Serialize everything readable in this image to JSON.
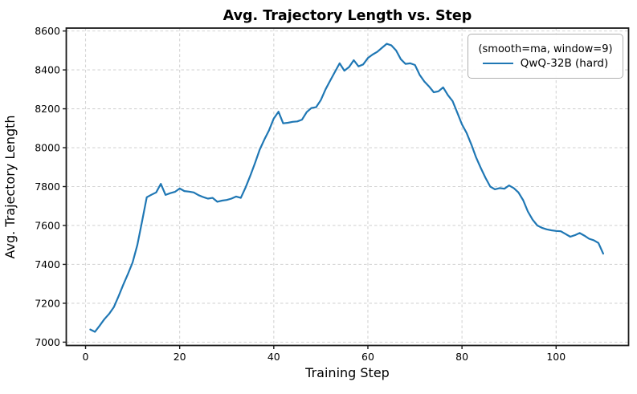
{
  "chart_data": {
    "type": "line",
    "title": "Avg. Trajectory Length vs. Step",
    "xlabel": "Training Step",
    "ylabel": "Avg. Trajectory Length",
    "grid": true,
    "grid_style": "dashed",
    "legend": {
      "position": "top-right",
      "title": "(smooth=ma, window=9)",
      "entries": [
        {
          "label": "QwQ-32B (hard)",
          "color": "#1f77b4"
        }
      ]
    },
    "xticks": [
      0,
      20,
      40,
      60,
      80,
      100
    ],
    "yticks": [
      7000,
      7200,
      7400,
      7600,
      7800,
      8000,
      8200,
      8400,
      8600
    ],
    "xlim": [
      -4.1,
      115.4
    ],
    "ylim": [
      6983,
      8615
    ],
    "series": [
      {
        "name": "QwQ-32B (hard)",
        "color": "#1f77b4",
        "x": [
          1,
          2,
          3,
          4,
          5,
          6,
          7,
          8,
          9,
          10,
          11,
          12,
          13,
          14,
          15,
          16,
          17,
          18,
          19,
          20,
          21,
          22,
          23,
          24,
          25,
          26,
          27,
          28,
          29,
          30,
          31,
          32,
          33,
          34,
          35,
          36,
          37,
          38,
          39,
          40,
          41,
          42,
          43,
          44,
          45,
          46,
          47,
          48,
          49,
          50,
          51,
          52,
          53,
          54,
          55,
          56,
          57,
          58,
          59,
          60,
          61,
          62,
          63,
          64,
          65,
          66,
          67,
          68,
          69,
          70,
          71,
          72,
          73,
          74,
          75,
          76,
          77,
          78,
          79,
          80,
          81,
          82,
          83,
          84,
          85,
          86,
          87,
          88,
          89,
          90,
          91,
          92,
          93,
          94,
          95,
          96,
          97,
          98,
          99,
          100,
          101,
          102,
          103,
          104,
          105,
          106,
          107,
          108,
          109,
          110
        ],
        "y": [
          7065,
          7053,
          7085,
          7118,
          7145,
          7180,
          7235,
          7295,
          7350,
          7410,
          7500,
          7620,
          7745,
          7758,
          7770,
          7814,
          7757,
          7766,
          7773,
          7790,
          7777,
          7774,
          7770,
          7756,
          7746,
          7738,
          7742,
          7722,
          7728,
          7731,
          7738,
          7749,
          7742,
          7795,
          7855,
          7920,
          7990,
          8042,
          8090,
          8150,
          8185,
          8125,
          8128,
          8133,
          8135,
          8144,
          8183,
          8204,
          8208,
          8245,
          8300,
          8345,
          8390,
          8434,
          8396,
          8415,
          8450,
          8418,
          8428,
          8461,
          8479,
          8493,
          8514,
          8534,
          8526,
          8500,
          8455,
          8431,
          8434,
          8425,
          8375,
          8340,
          8315,
          8285,
          8290,
          8310,
          8270,
          8240,
          8180,
          8120,
          8075,
          8015,
          7950,
          7895,
          7845,
          7800,
          7786,
          7792,
          7789,
          7806,
          7792,
          7770,
          7730,
          7672,
          7630,
          7600,
          7588,
          7580,
          7575,
          7572,
          7570,
          7556,
          7542,
          7550,
          7561,
          7548,
          7532,
          7524,
          7510,
          7455
        ]
      }
    ]
  },
  "colors": {
    "background": "#ffffff",
    "grid": "#d4d4d4",
    "spine": "#1a1a1a",
    "text": "#000000",
    "accent": "#1f77b4"
  }
}
